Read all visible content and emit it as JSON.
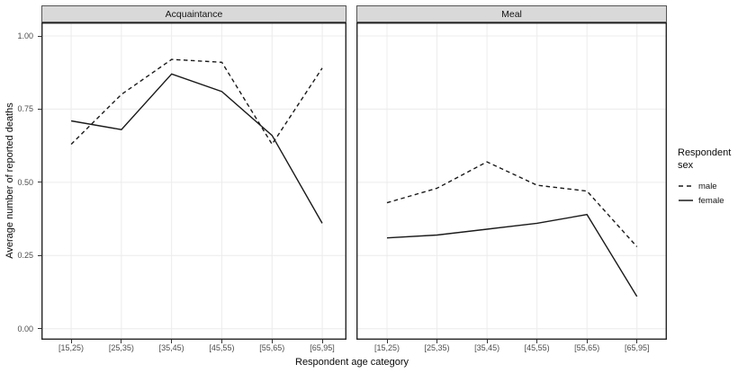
{
  "chart_data": {
    "type": "line",
    "xlabel": "Respondent age category",
    "ylabel": "Average number of reported deaths",
    "categories": [
      "[15,25)",
      "[25,35)",
      "[35,45)",
      "[45,55)",
      "[55,65)",
      "[65,95]"
    ],
    "ylim": [
      0,
      1
    ],
    "yticks": [
      {
        "value": 1.0,
        "label": "1.00"
      },
      {
        "value": 0.75,
        "label": "0.75"
      },
      {
        "value": 0.5,
        "label": "0.50"
      },
      {
        "value": 0.25,
        "label": "0.25"
      },
      {
        "value": 0.0,
        "label": "0.00"
      }
    ],
    "grid": "major-only",
    "facets": [
      {
        "label": "Acquaintance",
        "series": [
          {
            "name": "male",
            "linetype": "dashed",
            "values": [
              0.63,
              0.8,
              0.92,
              0.91,
              0.63,
              0.89
            ]
          },
          {
            "name": "female",
            "linetype": "solid",
            "values": [
              0.71,
              0.68,
              0.87,
              0.81,
              0.66,
              0.36
            ]
          }
        ]
      },
      {
        "label": "Meal",
        "series": [
          {
            "name": "male",
            "linetype": "dashed",
            "values": [
              0.43,
              0.48,
              0.57,
              0.49,
              0.47,
              0.28
            ]
          },
          {
            "name": "female",
            "linetype": "solid",
            "values": [
              0.31,
              0.32,
              0.34,
              0.36,
              0.39,
              0.11
            ]
          }
        ]
      }
    ],
    "legend": {
      "title": "Respondent sex",
      "position": "right",
      "entries": [
        {
          "label": "male",
          "linetype": "dashed"
        },
        {
          "label": "female",
          "linetype": "solid"
        }
      ]
    },
    "style": {
      "line_color": "#1a1a1a",
      "grid_color": "#ececec",
      "panel_border_color": "#262626",
      "strip_bg": "#d9d9d9",
      "strip_border": "#545454",
      "tick_color": "#333333",
      "tick_label_color": "#4d4d4d",
      "background": "#ffffff"
    }
  }
}
